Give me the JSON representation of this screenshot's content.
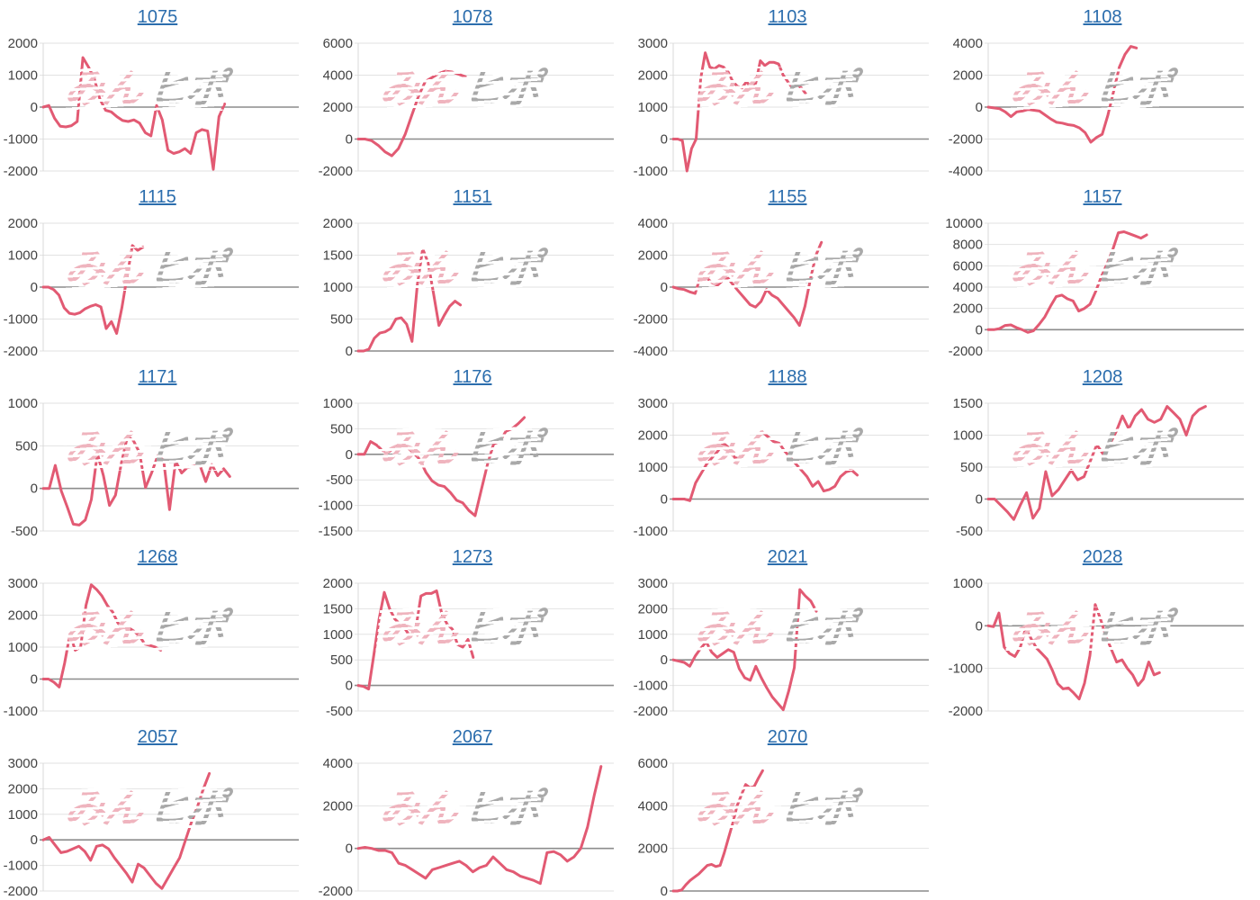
{
  "page": {
    "background": "#ffffff"
  },
  "style": {
    "line_color": "#e25a73",
    "title_color": "#2b6dad",
    "grid_color": "#e2e2e2",
    "zero_color": "#8c8c8c",
    "axis_color": "#d9d9d9",
    "tick_color": "#424242",
    "watermark_pink": "#efb4be",
    "watermark_gray": "#a9a9a9"
  },
  "watermark": {
    "pink_text": "みん",
    "gray_text": "ヒポ"
  },
  "chart_data": [
    {
      "type": "line",
      "id": "1075",
      "ticks": [
        2000,
        1000,
        0,
        -1000,
        -2000
      ],
      "span": 0.71,
      "values": [
        0,
        50,
        -350,
        -600,
        -620,
        -580,
        -450,
        1550,
        1250,
        900,
        250,
        -100,
        -150,
        -300,
        -420,
        -450,
        -400,
        -500,
        -800,
        -900,
        50,
        -400,
        -1350,
        -1450,
        -1400,
        -1300,
        -1450,
        -800,
        -700,
        -750,
        -1950,
        -300,
        100
      ]
    },
    {
      "type": "line",
      "id": "1078",
      "ticks": [
        6000,
        4000,
        2000,
        0,
        -2000
      ],
      "span": 0.42,
      "values": [
        0,
        0,
        -100,
        -400,
        -800,
        -1050,
        -600,
        300,
        1500,
        2700,
        3600,
        3850,
        4100,
        4250,
        4200,
        4050,
        3900
      ]
    },
    {
      "type": "line",
      "id": "1103",
      "ticks": [
        3000,
        2000,
        1000,
        0,
        -1000
      ],
      "span": 0.52,
      "values": [
        0,
        0,
        -50,
        -1000,
        -300,
        0,
        1900,
        2700,
        2250,
        2200,
        2300,
        2250,
        2100,
        1800,
        1650,
        1600,
        1800,
        1600,
        1750,
        2450,
        2300,
        2400,
        2400,
        2350,
        2000,
        1800,
        1600,
        1700,
        1600,
        1400
      ]
    },
    {
      "type": "line",
      "id": "1108",
      "ticks": [
        4000,
        2000,
        0,
        -2000,
        -4000
      ],
      "span": 0.58,
      "values": [
        0,
        -50,
        -100,
        -300,
        -600,
        -300,
        -250,
        -150,
        -200,
        -250,
        -500,
        -750,
        -950,
        -1000,
        -1100,
        -1150,
        -1300,
        -1600,
        -2200,
        -1900,
        -1700,
        -500,
        1000,
        2500,
        3300,
        3800,
        3700
      ]
    },
    {
      "type": "line",
      "id": "1115",
      "ticks": [
        2000,
        1000,
        0,
        -1000,
        -2000
      ],
      "span": 0.39,
      "values": [
        0,
        0,
        -80,
        -250,
        -650,
        -820,
        -850,
        -800,
        -680,
        -600,
        -550,
        -620,
        -1300,
        -1080,
        -1450,
        -650,
        350,
        1300,
        1150,
        1250
      ]
    },
    {
      "type": "line",
      "id": "1151",
      "ticks": [
        2000,
        1500,
        1000,
        500,
        0
      ],
      "span": 0.4,
      "values": [
        0,
        0,
        30,
        200,
        280,
        300,
        350,
        500,
        520,
        420,
        150,
        1050,
        1600,
        1380,
        900,
        400,
        560,
        700,
        780,
        720
      ]
    },
    {
      "type": "line",
      "id": "1155",
      "ticks": [
        4000,
        2000,
        0,
        -2000,
        -4000
      ],
      "span": 0.58,
      "values": [
        0,
        -100,
        -150,
        -300,
        -400,
        700,
        600,
        300,
        100,
        400,
        550,
        100,
        -300,
        -700,
        -1100,
        -1250,
        -900,
        -150,
        -500,
        -700,
        -1100,
        -1500,
        -1900,
        -2400,
        -1200,
        500,
        2000,
        2800
      ]
    },
    {
      "type": "line",
      "id": "1157",
      "ticks": [
        10000,
        8000,
        6000,
        4000,
        2000,
        0,
        -2000
      ],
      "span": 0.62,
      "values": [
        0,
        0,
        100,
        400,
        450,
        200,
        0,
        -250,
        -100,
        500,
        1200,
        2200,
        3100,
        3250,
        2900,
        2700,
        1750,
        2000,
        2400,
        3600,
        5000,
        6200,
        7500,
        9100,
        9200,
        9000,
        8800,
        8600,
        8900
      ]
    },
    {
      "type": "line",
      "id": "1171",
      "ticks": [
        1000,
        500,
        0,
        -500
      ],
      "span": 0.73,
      "values": [
        0,
        0,
        270,
        -30,
        -220,
        -420,
        -430,
        -370,
        -130,
        410,
        150,
        -200,
        -80,
        300,
        610,
        560,
        420,
        10,
        180,
        380,
        330,
        -250,
        320,
        180,
        250,
        260,
        280,
        80,
        280,
        150,
        230,
        140
      ]
    },
    {
      "type": "line",
      "id": "1176",
      "ticks": [
        1000,
        500,
        0,
        -500,
        -1000,
        -1500
      ],
      "span": 0.65,
      "values": [
        0,
        0,
        250,
        180,
        70,
        50,
        150,
        200,
        130,
        30,
        -100,
        -350,
        -520,
        -600,
        -630,
        -750,
        -900,
        -950,
        -1100,
        -1200,
        -700,
        -200,
        200,
        250,
        450,
        500,
        600,
        720
      ]
    },
    {
      "type": "line",
      "id": "1188",
      "ticks": [
        3000,
        2000,
        1000,
        0,
        -1000
      ],
      "span": 0.72,
      "values": [
        0,
        0,
        0,
        -50,
        500,
        800,
        1100,
        1300,
        1500,
        1750,
        1600,
        1300,
        1250,
        1500,
        1700,
        1900,
        2100,
        1950,
        1800,
        1750,
        1500,
        1300,
        1100,
        900,
        700,
        400,
        550,
        250,
        300,
        400,
        700,
        850,
        900,
        750
      ]
    },
    {
      "type": "line",
      "id": "1208",
      "ticks": [
        1500,
        1000,
        500,
        0,
        -500
      ],
      "span": 0.85,
      "values": [
        0,
        0,
        -100,
        -200,
        -320,
        -100,
        100,
        -300,
        -150,
        430,
        50,
        150,
        300,
        450,
        300,
        350,
        600,
        850,
        700,
        850,
        1050,
        1300,
        1100,
        1300,
        1400,
        1250,
        1200,
        1250,
        1450,
        1350,
        1250,
        1000,
        1300,
        1400,
        1450
      ]
    },
    {
      "type": "line",
      "id": "1268",
      "ticks": [
        3000,
        2000,
        1000,
        0,
        -1000
      ],
      "span": 0.46,
      "values": [
        0,
        0,
        -100,
        -250,
        500,
        1400,
        900,
        1000,
        2300,
        2950,
        2800,
        2600,
        2300,
        2100,
        1750,
        1650,
        1600,
        1500,
        1350,
        1100,
        1050,
        1000,
        900
      ]
    },
    {
      "type": "line",
      "id": "1273",
      "ticks": [
        2000,
        1500,
        1000,
        500,
        0,
        -500
      ],
      "span": 0.45,
      "values": [
        0,
        -20,
        -70,
        600,
        1300,
        1820,
        1500,
        1300,
        1200,
        1100,
        950,
        1100,
        1750,
        1800,
        1800,
        1850,
        1400,
        1200,
        1100,
        800,
        750,
        900,
        550
      ]
    },
    {
      "type": "line",
      "id": "2021",
      "ticks": [
        3000,
        2000,
        1000,
        0,
        -1000,
        -2000
      ],
      "span": 0.56,
      "values": [
        0,
        -50,
        -100,
        -250,
        150,
        450,
        700,
        300,
        100,
        250,
        400,
        300,
        -350,
        -700,
        -800,
        -250,
        -700,
        -1100,
        -1450,
        -1700,
        -1950,
        -1200,
        -300,
        2750,
        2500,
        2300,
        1900
      ]
    },
    {
      "type": "line",
      "id": "2028",
      "ticks": [
        1000,
        0,
        -1000,
        -2000
      ],
      "span": 0.67,
      "values": [
        0,
        -20,
        300,
        -500,
        -650,
        -720,
        -500,
        -60,
        -300,
        -520,
        -650,
        -780,
        -1050,
        -1360,
        -1480,
        -1460,
        -1580,
        -1720,
        -1350,
        -700,
        500,
        150,
        -250,
        -550,
        -850,
        -800,
        -1000,
        -1150,
        -1400,
        -1250,
        -850,
        -1150,
        -1100
      ]
    },
    {
      "type": "line",
      "id": "2057",
      "ticks": [
        3000,
        2000,
        1000,
        0,
        -1000,
        -2000
      ],
      "span": 0.65,
      "values": [
        0,
        100,
        -200,
        -500,
        -450,
        -350,
        -250,
        -450,
        -800,
        -250,
        -200,
        -350,
        -700,
        -1000,
        -1300,
        -1650,
        -950,
        -1100,
        -1400,
        -1700,
        -1900,
        -1500,
        -1100,
        -700,
        0,
        700,
        1300,
        2000,
        2600
      ]
    },
    {
      "type": "line",
      "id": "2067",
      "ticks": [
        4000,
        2000,
        0,
        -2000
      ],
      "span": 0.95,
      "values": [
        0,
        50,
        0,
        -100,
        -100,
        -200,
        -700,
        -800,
        -1000,
        -1200,
        -1400,
        -1000,
        -900,
        -800,
        -700,
        -600,
        -800,
        -1100,
        -900,
        -800,
        -400,
        -700,
        -1000,
        -1100,
        -1300,
        -1400,
        -1500,
        -1650,
        -200,
        -150,
        -300,
        -600,
        -400,
        0,
        1000,
        2500,
        3850
      ]
    },
    {
      "type": "line",
      "id": "2070",
      "ticks": [
        6000,
        4000,
        2000,
        0
      ],
      "span": 0.35,
      "values": [
        0,
        0,
        50,
        300,
        500,
        650,
        800,
        1000,
        1200,
        1250,
        1150,
        1200,
        1800,
        2500,
        3200,
        4000,
        4500,
        5000,
        4850,
        4900,
        5300,
        5650
      ]
    }
  ]
}
